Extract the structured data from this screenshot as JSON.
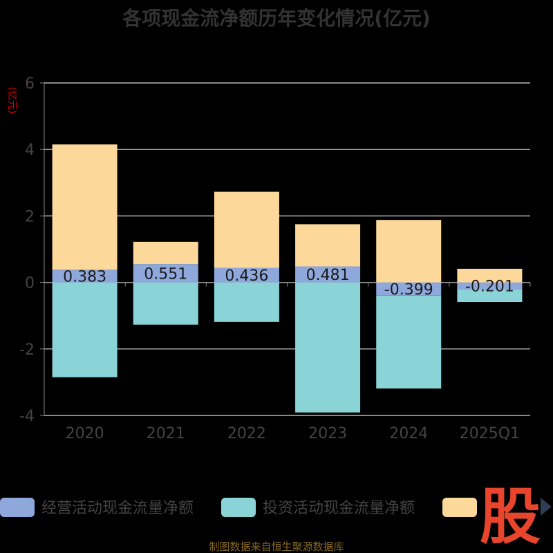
{
  "chart_data": {
    "type": "bar",
    "stacked": true,
    "title": "各项现金流净额历年变化情况(亿元)",
    "ylabel": "(亿元)",
    "categories": [
      "2020",
      "2021",
      "2022",
      "2023",
      "2024",
      "2025Q1"
    ],
    "y_ticks": [
      "6",
      "4",
      "2",
      "0",
      "-2",
      "-4"
    ],
    "ylim": [
      -4,
      6
    ],
    "grid": true,
    "legend_position": "bottom",
    "series": [
      {
        "name": "经营活动现金流量净额",
        "color": "#8fa8dc",
        "values": [
          0.383,
          0.551,
          0.436,
          0.481,
          -0.399,
          -0.201
        ],
        "labels": [
          "0.383",
          "0.551",
          "0.436",
          "0.481",
          "-0.399",
          "-0.201"
        ]
      },
      {
        "name": "投资活动现金流量净额",
        "color": "#8ad4d8",
        "values": [
          -2.85,
          -1.27,
          -1.19,
          -3.91,
          -2.79,
          -0.39
        ]
      },
      {
        "name": "",
        "color": "#fdd89b",
        "values": [
          3.77,
          0.67,
          2.29,
          1.27,
          1.88,
          0.41
        ]
      }
    ]
  },
  "watermark": "股",
  "source": "制图数据来自恒生聚源数据库",
  "legend_more_icon": "triangle-right-icon"
}
